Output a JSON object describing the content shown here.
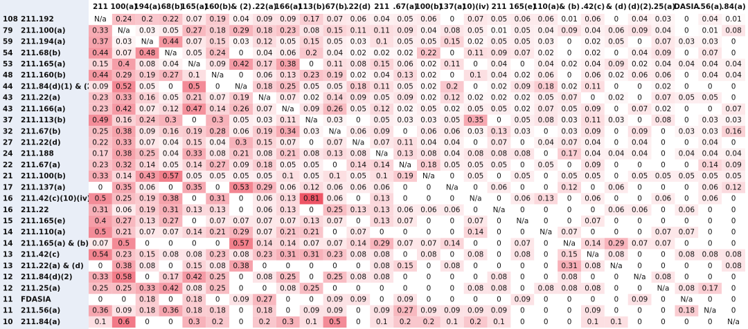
{
  "table": {
    "columns": [
      "211",
      "100(a)",
      "194(a)",
      ".68(b)",
      "165(a)",
      "160(b)",
      "& (2)",
      ".22(a)",
      "166(a)",
      "113(b)",
      ".67(b)",
      ".22(d)",
      "211",
      ".67(a)",
      "100(b)",
      "137(a)",
      "10)(iv)",
      "211",
      "165(e)",
      "110(a)",
      "& (b)",
      ".42(c)",
      "& (d)",
      "(d)(2)",
      ".25(a)",
      "DASIA",
      ".56(a)",
      ".84(a)"
    ],
    "color_scale": [
      "#ffffff",
      "#ee5566"
    ],
    "rows": [
      {
        "count": 108,
        "name": "211.192",
        "values": [
          "N/a",
          0.24,
          0.2,
          0.22,
          0.07,
          0.19,
          0.04,
          0.09,
          0.09,
          0.17,
          0.07,
          0.06,
          0.04,
          0.05,
          0.06,
          0,
          0.07,
          0.05,
          0.06,
          0.06,
          0.01,
          0.06,
          0,
          0.04,
          0.03,
          0,
          0.04,
          0.01
        ]
      },
      {
        "count": 79,
        "name": "211.100(a)",
        "values": [
          0.33,
          "N/a",
          0.03,
          0.05,
          0.27,
          0.18,
          0.29,
          0.18,
          0.23,
          0.08,
          0.15,
          0.11,
          0.11,
          0.09,
          0.04,
          0.08,
          0.05,
          0.01,
          0.05,
          0.04,
          0.09,
          0.04,
          0.06,
          0.09,
          0.04,
          0,
          0.01,
          0.08
        ]
      },
      {
        "count": 59,
        "name": "211.194(a)",
        "values": [
          0.37,
          0.03,
          "N/a",
          0.44,
          0.07,
          0.15,
          0.03,
          0.12,
          0.05,
          0.15,
          0.05,
          0.03,
          0.1,
          0.05,
          0.05,
          0.15,
          0.02,
          0.05,
          0.05,
          0.03,
          0,
          0.02,
          0.05,
          0,
          0.07,
          0.03,
          0.03,
          0
        ]
      },
      {
        "count": 54,
        "name": "211.68(b)",
        "values": [
          0.44,
          0.07,
          0.48,
          "N/a",
          0.05,
          0.24,
          0,
          0.04,
          0.06,
          0.2,
          0.04,
          0.02,
          0.02,
          0.02,
          0.22,
          0,
          0.11,
          0.09,
          0.07,
          0.02,
          0,
          0.02,
          0,
          0.04,
          0.09,
          0,
          0.07,
          0
        ]
      },
      {
        "count": 53,
        "name": "211.165(a)",
        "values": [
          0.15,
          0.4,
          0.08,
          0.04,
          "N/a",
          0.09,
          0.42,
          0.17,
          0.38,
          0,
          0.11,
          0.08,
          0.15,
          0.06,
          0.02,
          0.11,
          0,
          0.04,
          0,
          0.04,
          0.02,
          0.04,
          0.09,
          0.02,
          0.04,
          0.04,
          0.04,
          0.04
        ]
      },
      {
        "count": 48,
        "name": "211.160(b)",
        "values": [
          0.44,
          0.29,
          0.19,
          0.27,
          0.1,
          "N/a",
          0,
          0.06,
          0.13,
          0.23,
          0.19,
          0.02,
          0.04,
          0.13,
          0.02,
          0,
          0.1,
          0.04,
          0.02,
          0.06,
          0,
          0.06,
          0.02,
          0.06,
          0.06,
          0,
          0.04,
          0.04
        ]
      },
      {
        "count": 44,
        "name": "211.84(d)(1) & (2",
        "values": [
          0.09,
          0.52,
          0.05,
          0,
          0.5,
          0,
          "N/a",
          0.18,
          0.25,
          0.05,
          0.05,
          0.18,
          0.11,
          0.05,
          0.02,
          0.2,
          0,
          0.02,
          0.09,
          0.18,
          0.02,
          0.11,
          0,
          0,
          0.02,
          0,
          0,
          0
        ]
      },
      {
        "count": 43,
        "name": "211.22(a)",
        "values": [
          0.23,
          0.33,
          0.16,
          0.05,
          0.21,
          0.07,
          0.19,
          "N/a",
          0.07,
          0.02,
          0.14,
          0.09,
          0.05,
          0.09,
          0.02,
          0.12,
          0.02,
          0.02,
          0.02,
          0.05,
          0.07,
          0,
          0.02,
          0,
          0.07,
          0.05,
          0.05,
          0
        ]
      },
      {
        "count": 43,
        "name": "211.166(a)",
        "values": [
          0.23,
          0.42,
          0.07,
          0.12,
          0.47,
          0.14,
          0.26,
          0.07,
          "N/a",
          0.09,
          0.26,
          0.05,
          0.12,
          0.02,
          0.05,
          0.02,
          0.05,
          0.05,
          0.02,
          0.07,
          0.05,
          0.09,
          0,
          0.07,
          0.02,
          0,
          0,
          0.07
        ]
      },
      {
        "count": 37,
        "name": "211.113(b)",
        "values": [
          0.49,
          0.16,
          0.24,
          0.3,
          0,
          0.3,
          0.05,
          0.03,
          0.11,
          "N/a",
          0.03,
          0,
          0.05,
          0.03,
          0.03,
          0.05,
          0.35,
          0,
          0.05,
          0.08,
          0.03,
          0.11,
          0.03,
          0,
          0.08,
          0,
          0.03,
          0.03
        ]
      },
      {
        "count": 32,
        "name": "211.67(b)",
        "values": [
          0.25,
          0.38,
          0.09,
          0.16,
          0.19,
          0.28,
          0.06,
          0.19,
          0.34,
          0.03,
          "N/a",
          0.06,
          0.09,
          0,
          0.06,
          0.06,
          0.03,
          0.13,
          0.03,
          0,
          0.03,
          0.09,
          0,
          0.09,
          0,
          0.03,
          0.03,
          0.16
        ]
      },
      {
        "count": 27,
        "name": "211.22(d)",
        "values": [
          0.22,
          0.33,
          0.07,
          0.04,
          0.15,
          0.04,
          0.3,
          0.15,
          0.07,
          0,
          0.07,
          "N/a",
          0.07,
          0.11,
          0.04,
          0.04,
          0,
          0.07,
          0,
          0.04,
          0.07,
          0.04,
          0,
          0.04,
          0,
          0,
          0.04,
          0
        ]
      },
      {
        "count": 24,
        "name": "211.188",
        "values": [
          0.17,
          0.38,
          0.25,
          0.04,
          0.33,
          0.08,
          0.21,
          0.08,
          0.21,
          0.08,
          0.13,
          0.08,
          "N/a",
          0.13,
          0.08,
          0.04,
          0.08,
          0.08,
          0.08,
          0,
          0.17,
          0.04,
          0.04,
          0.04,
          0,
          0.04,
          0.04,
          0.04
        ]
      },
      {
        "count": 22,
        "name": "211.67(a)",
        "values": [
          0.23,
          0.32,
          0.14,
          0.05,
          0.14,
          0.27,
          0.09,
          0.18,
          0.05,
          0.05,
          0,
          0.14,
          0.14,
          "N/a",
          0.18,
          0.05,
          0.05,
          0.05,
          0,
          0.05,
          0,
          0.09,
          0,
          0,
          0,
          0,
          0.14,
          0.09
        ]
      },
      {
        "count": 21,
        "name": "211.100(b)",
        "values": [
          0.33,
          0.14,
          0.43,
          0.57,
          0.05,
          0.05,
          0.05,
          0.05,
          0.1,
          0.05,
          0.1,
          0.05,
          0.1,
          0.19,
          "N/a",
          0,
          0.05,
          0,
          0.05,
          0,
          0.05,
          0.05,
          0,
          0.05,
          0.05,
          0.05,
          0.05,
          0.05
        ]
      },
      {
        "count": 17,
        "name": "211.137(a)",
        "values": [
          0,
          0.35,
          0.06,
          0,
          0.35,
          0,
          0.53,
          0.29,
          0.06,
          0.12,
          0.06,
          0.06,
          0.06,
          0,
          0,
          "N/a",
          0,
          0.06,
          0,
          0,
          0.12,
          0,
          0.06,
          0,
          0,
          0,
          0.06,
          0.12
        ]
      },
      {
        "count": 16,
        "name": "211.42(c)(10)(iv)",
        "values": [
          0.5,
          0.25,
          0.19,
          0.38,
          0,
          0.31,
          0,
          0.06,
          0.13,
          0.81,
          0.06,
          0,
          0.13,
          0,
          0,
          0,
          "N/a",
          0,
          0.06,
          0.13,
          0,
          0.06,
          0,
          0,
          0.06,
          0,
          0.06,
          0
        ]
      },
      {
        "count": 16,
        "name": "211.22",
        "values": [
          0.31,
          0.06,
          0.19,
          0.31,
          0.13,
          0.13,
          0,
          0.06,
          0.13,
          0,
          0.25,
          0.13,
          0.13,
          0.06,
          0.06,
          0.06,
          0,
          "N/a",
          0,
          0,
          0,
          0,
          0.06,
          0.06,
          0,
          0.06,
          0,
          0
        ]
      },
      {
        "count": 15,
        "name": "211.165(e)",
        "values": [
          0.4,
          0.27,
          0.13,
          0.27,
          0,
          0.07,
          0.07,
          0.07,
          0.07,
          0.13,
          0.07,
          0,
          0.13,
          0.07,
          0,
          0,
          0.07,
          0,
          "N/a",
          0,
          0,
          0.07,
          0,
          0,
          0,
          0,
          0,
          0
        ]
      },
      {
        "count": 14,
        "name": "211.110(a)",
        "values": [
          0.5,
          0.21,
          0.07,
          0.07,
          0.14,
          0.21,
          0.29,
          0.07,
          0.21,
          0.21,
          0,
          0.07,
          0,
          0,
          0,
          0,
          0.14,
          0,
          0,
          "N/a",
          0.07,
          0,
          0,
          0,
          0.07,
          0.07,
          0,
          0
        ]
      },
      {
        "count": 14,
        "name": "211.165(a) & (b)",
        "values": [
          0.07,
          0.5,
          0,
          0,
          0,
          0,
          0.57,
          0.14,
          0.14,
          0.07,
          0.07,
          0.14,
          0.29,
          0.07,
          0.07,
          0.14,
          0,
          0,
          0.07,
          0,
          "N/a",
          0.14,
          0.29,
          0.07,
          0.07,
          0,
          0,
          0
        ]
      },
      {
        "count": 13,
        "name": "211.42(c)",
        "values": [
          0.54,
          0.23,
          0.15,
          0.08,
          0.08,
          0.23,
          0.08,
          0.23,
          0.31,
          0.31,
          0.23,
          0.08,
          0.08,
          0,
          0.08,
          0,
          0.08,
          0,
          0.08,
          0,
          0.15,
          "N/a",
          0.08,
          0,
          0,
          0.08,
          0.08,
          0.08
        ]
      },
      {
        "count": 13,
        "name": "211.22(a) & (d)",
        "values": [
          0,
          0.38,
          0.08,
          0,
          0.15,
          0.08,
          0.38,
          0,
          0,
          0,
          0,
          0,
          0.08,
          0.15,
          0,
          0.08,
          0,
          0,
          0,
          0,
          0.31,
          0.08,
          "N/a",
          0,
          0,
          0,
          0,
          0.08
        ]
      },
      {
        "count": 12,
        "name": "211.84(d)(2)",
        "values": [
          0.33,
          0.58,
          0,
          0.17,
          0.42,
          0.25,
          0,
          0.08,
          0.25,
          0,
          0.25,
          0.08,
          0.08,
          0,
          0,
          0,
          0,
          0.08,
          0,
          0,
          0.08,
          0,
          0,
          "N/a",
          0.08,
          0,
          0,
          0
        ]
      },
      {
        "count": 12,
        "name": "211.25(a)",
        "values": [
          0.25,
          0.25,
          0.33,
          0.42,
          0.08,
          0.25,
          0,
          0,
          0.08,
          0.25,
          0,
          0,
          0,
          0,
          0,
          0,
          0.08,
          0.08,
          0,
          0.08,
          0.08,
          0.08,
          0,
          0,
          "N/a",
          0.08,
          0.17,
          0
        ]
      },
      {
        "count": 11,
        "name": "FDASIA",
        "values": [
          0,
          0,
          0.18,
          0,
          0.18,
          0,
          0.09,
          0.27,
          0,
          0,
          0.09,
          0.09,
          0,
          0.09,
          0,
          0,
          0,
          0,
          0.09,
          0,
          0,
          0,
          0,
          0.09,
          0,
          "N/a",
          0,
          0
        ]
      },
      {
        "count": 11,
        "name": "211.56(a)",
        "values": [
          0.36,
          0.09,
          0.18,
          0.36,
          0.18,
          0.18,
          0,
          0.18,
          0,
          0.09,
          0.09,
          0,
          0.09,
          0.27,
          0.09,
          0.09,
          0.09,
          0.09,
          0,
          0,
          0,
          0.09,
          0,
          0,
          0,
          0.18,
          "N/a",
          0
        ]
      },
      {
        "count": 10,
        "name": "211.84(a)",
        "values": [
          0.1,
          0.6,
          0,
          0,
          0.3,
          0.2,
          0,
          0.2,
          0.3,
          0.1,
          0.5,
          0,
          0.1,
          0.2,
          0.2,
          0.1,
          0.2,
          0.1,
          0,
          0,
          0,
          0.1,
          0.1,
          0,
          0,
          0,
          0,
          "N/a"
        ]
      }
    ]
  }
}
